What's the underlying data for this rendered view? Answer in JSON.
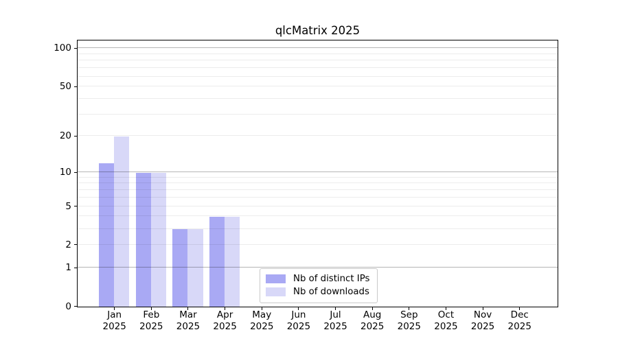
{
  "title": "qlcMatrix 2025",
  "legend": {
    "items": [
      {
        "label": "Nb of distinct IPs",
        "color": "#a9a9f4"
      },
      {
        "label": "Nb of downloads",
        "color": "#d8d8f8"
      }
    ]
  },
  "y_axis": {
    "tick_labels": [
      "100",
      "50",
      "20",
      "10",
      "5",
      "2",
      "1",
      "0"
    ],
    "tick_values": [
      100,
      50,
      20,
      10,
      5,
      2,
      1,
      0
    ]
  },
  "x_axis": {
    "months": [
      "Jan",
      "Feb",
      "Mar",
      "Apr",
      "May",
      "Jun",
      "Jul",
      "Aug",
      "Sep",
      "Oct",
      "Nov",
      "Dec"
    ],
    "year": "2025"
  },
  "chart_data": {
    "type": "bar",
    "title": "qlcMatrix 2025",
    "categories": [
      "Jan 2025",
      "Feb 2025",
      "Mar 2025",
      "Apr 2025",
      "May 2025",
      "Jun 2025",
      "Jul 2025",
      "Aug 2025",
      "Sep 2025",
      "Oct 2025",
      "Nov 2025",
      "Dec 2025"
    ],
    "series": [
      {
        "name": "Nb of distinct IPs",
        "color": "#a9a9f4",
        "values": [
          12,
          10,
          3,
          4,
          0,
          0,
          0,
          0,
          0,
          0,
          0,
          0
        ]
      },
      {
        "name": "Nb of downloads",
        "color": "#d8d8f8",
        "values": [
          20,
          10,
          3,
          4,
          0,
          0,
          0,
          0,
          0,
          0,
          0,
          0
        ]
      }
    ],
    "xlabel": "",
    "ylabel": "",
    "y_scale": "log1p",
    "ylim": [
      0,
      115
    ],
    "y_ticks": [
      0,
      1,
      2,
      5,
      10,
      20,
      50,
      100
    ],
    "gridlines_major": [
      1,
      10,
      100
    ],
    "gridlines_minor": [
      2,
      3,
      4,
      5,
      6,
      7,
      8,
      9,
      20,
      30,
      40,
      50,
      60,
      70,
      80,
      90
    ],
    "grid": "on",
    "legend_position": "inside-bottom-center-left"
  }
}
